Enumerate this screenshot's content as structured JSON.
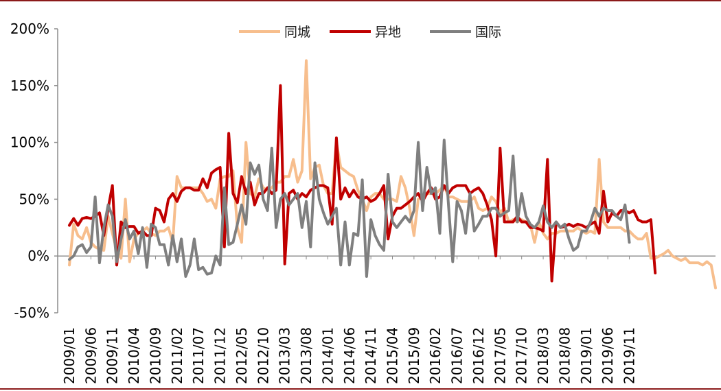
{
  "chart_data": {
    "type": "line",
    "title": "",
    "xlabel": "",
    "ylabel": "",
    "ylim": [
      -50,
      200
    ],
    "y_ticks": [
      -50,
      0,
      50,
      100,
      150,
      200
    ],
    "y_tick_labels": [
      "-50%",
      "0%",
      "50%",
      "100%",
      "150%",
      "200%"
    ],
    "x_tick_labels": [
      "2009/01",
      "2009/06",
      "2009/11",
      "2010/04",
      "2010/09",
      "2011/02",
      "2011/07",
      "2011/12",
      "2012/05",
      "2012/10",
      "2013/03",
      "2013/08",
      "2014/01",
      "2014/06",
      "2014/11",
      "2015/04",
      "2015/09",
      "2016/02",
      "2016/07",
      "2016/12",
      "2017/05",
      "2017/10",
      "2018/03",
      "2018/08",
      "2019/01",
      "2019/06",
      "2019/11"
    ],
    "x_tick_step_months": 5,
    "start_month": "2009/01",
    "legend_position": "top-center",
    "grid": false,
    "series": [
      {
        "name": "同城",
        "color": "#F7BE8D",
        "values": [
          -8,
          28,
          18,
          15,
          25,
          12,
          8,
          6,
          5,
          35,
          20,
          5,
          -2,
          50,
          -5,
          15,
          20,
          22,
          25,
          20,
          18,
          22,
          22,
          25,
          12,
          70,
          60,
          60,
          60,
          60,
          60,
          55,
          48,
          50,
          42,
          68,
          70,
          70,
          75,
          25,
          12,
          100,
          55,
          52,
          68,
          60,
          58,
          60,
          65,
          65,
          70,
          70,
          85,
          65,
          75,
          172,
          68,
          78,
          80,
          62,
          55,
          55,
          100,
          78,
          75,
          72,
          70,
          58,
          50,
          40,
          52,
          55,
          55,
          50,
          50,
          50,
          48,
          70,
          60,
          42,
          18,
          50,
          52,
          55,
          55,
          55,
          58,
          62,
          52,
          52,
          50,
          48,
          48,
          48,
          52,
          42,
          40,
          42,
          52,
          48,
          38,
          42,
          30,
          32,
          30,
          32,
          30,
          28,
          12,
          30,
          20,
          15,
          20,
          20,
          22,
          22,
          22,
          22,
          25,
          22,
          20,
          22,
          20,
          85,
          30,
          25,
          25,
          25,
          25,
          22,
          22,
          18,
          15,
          15,
          20,
          -2,
          -2,
          0,
          2,
          5,
          0,
          -2,
          -4,
          -2,
          -6,
          -6,
          -6,
          -8,
          -5,
          -8,
          -28
        ]
      },
      {
        "name": "异地",
        "color": "#C00000",
        "values": [
          27,
          33,
          27,
          33,
          34,
          33,
          35,
          38,
          18,
          42,
          62,
          -8,
          30,
          25,
          26,
          26,
          20,
          22,
          18,
          18,
          42,
          40,
          30,
          50,
          55,
          48,
          57,
          60,
          60,
          58,
          58,
          68,
          60,
          73,
          76,
          78,
          8,
          108,
          55,
          47,
          70,
          55,
          65,
          45,
          55,
          55,
          60,
          55,
          58,
          150,
          -7,
          55,
          58,
          50,
          55,
          52,
          58,
          60,
          62,
          62,
          60,
          28,
          104,
          50,
          60,
          52,
          58,
          52,
          50,
          52,
          48,
          50,
          55,
          62,
          15,
          35,
          42,
          42,
          45,
          48,
          52,
          55,
          48,
          55,
          60,
          50,
          52,
          62,
          55,
          60,
          62,
          62,
          62,
          55,
          58,
          60,
          55,
          45,
          32,
          0,
          95,
          30,
          30,
          30,
          35,
          30,
          30,
          25,
          25,
          24,
          22,
          85,
          -22,
          30,
          25,
          26,
          28,
          26,
          28,
          27,
          25,
          28,
          30,
          20,
          57,
          30,
          38,
          35,
          40,
          40,
          38,
          40,
          32,
          30,
          30,
          32,
          -15
        ]
      },
      {
        "name": "国际",
        "color": "#7F7F7F",
        "values": [
          -3,
          0,
          8,
          10,
          3,
          8,
          52,
          -6,
          25,
          45,
          35,
          -5,
          15,
          32,
          15,
          22,
          2,
          25,
          -10,
          28,
          25,
          10,
          10,
          -8,
          18,
          -5,
          15,
          -18,
          -8,
          15,
          -12,
          -10,
          -16,
          -15,
          0,
          -8,
          60,
          10,
          12,
          28,
          45,
          28,
          82,
          72,
          80,
          50,
          40,
          95,
          25,
          50,
          55,
          45,
          50,
          55,
          25,
          48,
          8,
          82,
          50,
          38,
          28,
          35,
          42,
          -8,
          30,
          -8,
          20,
          18,
          67,
          -18,
          32,
          18,
          10,
          5,
          72,
          30,
          25,
          30,
          35,
          30,
          40,
          100,
          40,
          78,
          55,
          60,
          20,
          102,
          45,
          -5,
          48,
          40,
          20,
          55,
          22,
          28,
          35,
          35,
          42,
          42,
          35,
          38,
          40,
          88,
          30,
          55,
          35,
          28,
          25,
          30,
          44,
          30,
          25,
          30,
          25,
          28,
          15,
          5,
          8,
          22,
          22,
          30,
          42,
          35,
          42,
          40,
          40,
          35,
          32,
          45,
          12
        ]
      }
    ]
  },
  "legend": {
    "items": [
      {
        "label": "同城"
      },
      {
        "label": "异地"
      },
      {
        "label": "国际"
      }
    ]
  }
}
